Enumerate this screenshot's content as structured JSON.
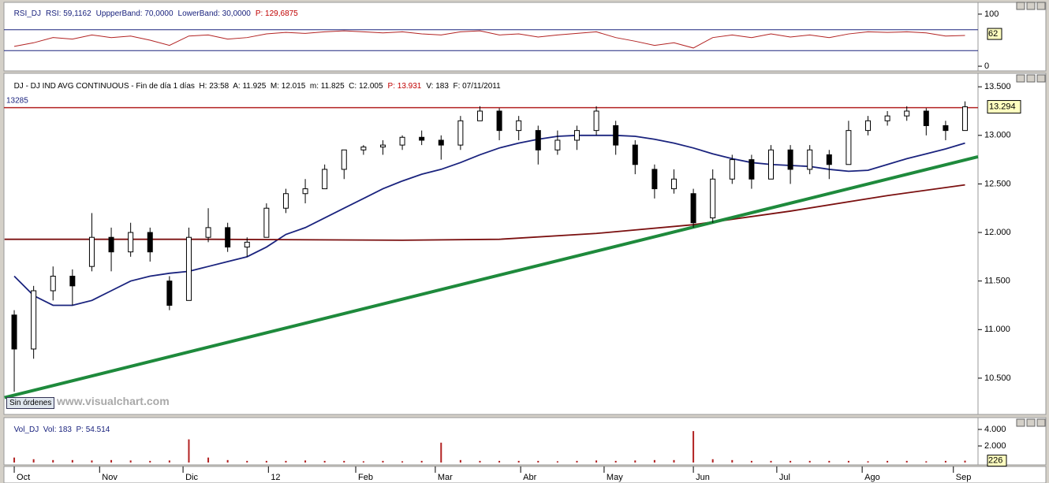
{
  "chart_data": [
    {
      "type": "line",
      "title_parts": [
        "RSI_DJ",
        "RSI: 59,1162",
        "UppperBand: 70,0000",
        "LowerBand: 30,0000",
        "P: 129,6875"
      ],
      "ylim": [
        -9,
        112
      ],
      "yticks": [
        100,
        0
      ],
      "bands": [
        70,
        30
      ],
      "band_color": "#1a237e",
      "last_value": 62,
      "xlim": [
        -0.53,
        49.67
      ],
      "series": [
        {
          "color": "#b22222",
          "x": [
            0,
            1,
            2,
            3,
            4,
            5,
            6,
            7,
            8,
            9,
            10,
            11,
            12,
            13,
            14,
            15,
            16,
            17,
            18,
            19,
            20,
            21,
            22,
            23,
            24,
            25,
            26,
            27,
            28,
            29,
            30,
            31,
            32,
            33,
            34,
            35,
            36,
            37,
            38,
            39,
            40,
            41,
            42,
            43,
            44,
            45,
            46,
            47,
            48,
            49
          ],
          "values": [
            38,
            45,
            55,
            52,
            60,
            55,
            58,
            50,
            40,
            58,
            60,
            52,
            55,
            62,
            65,
            63,
            66,
            68,
            66,
            64,
            66,
            62,
            60,
            66,
            68,
            60,
            62,
            56,
            60,
            63,
            66,
            55,
            48,
            40,
            45,
            35,
            55,
            60,
            55,
            62,
            56,
            60,
            55,
            62,
            66,
            65,
            66,
            64,
            58,
            59
          ]
        }
      ]
    },
    {
      "type": "candlestick",
      "title_parts": [
        "DJ - DJ IND AVG CONTINUOUS - Fin de día 1 días  H: 23:58  A: 11.925  M: 12.015  m: 11.825  C: 12.005",
        "P: 13.931",
        "V: 183  F: 07/11/2011"
      ],
      "ylim": [
        10110,
        13550
      ],
      "xlim": [
        -0.53,
        49.67
      ],
      "yticks": [
        {
          "value": 13500,
          "label": "13.500"
        },
        {
          "value": 13000,
          "label": "13.000"
        },
        {
          "value": 12500,
          "label": "12.500"
        },
        {
          "value": 12000,
          "label": "12.000"
        },
        {
          "value": 11500,
          "label": "11.500"
        },
        {
          "value": 11000,
          "label": "11.000"
        },
        {
          "value": 10500,
          "label": "10.500"
        }
      ],
      "hline": 13285,
      "hline_color": "#b22222",
      "last_price": {
        "value": 13294,
        "label": "13.294"
      },
      "candles": {
        "x": [
          0,
          1,
          2,
          3,
          4,
          5,
          6,
          7,
          8,
          9,
          10,
          11,
          12,
          13,
          14,
          15,
          16,
          17,
          18,
          19,
          20,
          21,
          22,
          23,
          24,
          25,
          26,
          27,
          28,
          29,
          30,
          31,
          32,
          33,
          34,
          35,
          36,
          37,
          38,
          39,
          40,
          41,
          42,
          43,
          44,
          45,
          46,
          47,
          48,
          49
        ],
        "open": [
          11150,
          10800,
          11400,
          11550,
          11650,
          11950,
          11800,
          12000,
          11500,
          11300,
          11950,
          12050,
          11850,
          11950,
          12250,
          12400,
          12450,
          12650,
          12850,
          12880,
          12900,
          12980,
          12950,
          12900,
          13150,
          13250,
          13050,
          13050,
          12850,
          12950,
          13050,
          13100,
          12900,
          12650,
          12450,
          12400,
          12150,
          12550,
          12750,
          12550,
          12850,
          12650,
          12800,
          12700,
          13050,
          13150,
          13200,
          13250,
          13100,
          13050
        ],
        "high": [
          11200,
          11450,
          11650,
          11620,
          12200,
          12050,
          12100,
          12050,
          11550,
          12050,
          12250,
          12100,
          11950,
          12300,
          12450,
          12550,
          12700,
          12800,
          12900,
          12950,
          13000,
          13050,
          13000,
          13200,
          13300,
          13280,
          13200,
          13100,
          13050,
          13100,
          13300,
          13150,
          12950,
          12700,
          12650,
          12450,
          12650,
          12800,
          12800,
          12900,
          12900,
          12900,
          12850,
          13150,
          13200,
          13250,
          13300,
          13280,
          13150,
          13350
        ],
        "low": [
          10360,
          10700,
          11300,
          11250,
          11600,
          11600,
          11750,
          11700,
          11200,
          11300,
          11900,
          11800,
          11750,
          11950,
          12200,
          12300,
          12450,
          12550,
          12800,
          12800,
          12850,
          12900,
          12750,
          12850,
          13150,
          12950,
          12950,
          12700,
          12800,
          12850,
          13000,
          12800,
          12600,
          12350,
          12400,
          12050,
          12100,
          12500,
          12450,
          12550,
          12500,
          12600,
          12550,
          12700,
          13000,
          13100,
          13150,
          13000,
          12950,
          13050
        ],
        "close": [
          10800,
          11400,
          11550,
          11450,
          11950,
          11800,
          12000,
          11800,
          11250,
          11950,
          12050,
          11850,
          11900,
          12250,
          12400,
          12450,
          12650,
          12850,
          12880,
          12900,
          12980,
          12950,
          12900,
          13150,
          13250,
          13050,
          13150,
          12850,
          12950,
          13050,
          13250,
          12900,
          12700,
          12450,
          12550,
          12100,
          12550,
          12750,
          12550,
          12850,
          12650,
          12850,
          12700,
          13050,
          13150,
          13200,
          13250,
          13100,
          13050,
          13294
        ]
      },
      "lines": [
        {
          "color": "#1a237e",
          "x": [
            0,
            1,
            2,
            3,
            4,
            5,
            6,
            7,
            8,
            9,
            10,
            11,
            12,
            13,
            14,
            15,
            16,
            17,
            18,
            19,
            20,
            21,
            22,
            23,
            24,
            25,
            26,
            27,
            28,
            29,
            30,
            31,
            32,
            33,
            34,
            35,
            36,
            37,
            38,
            39,
            40,
            41,
            42,
            43,
            44,
            45,
            46,
            47,
            48,
            49
          ],
          "values": [
            11550,
            11350,
            11250,
            11250,
            11300,
            11400,
            11500,
            11550,
            11580,
            11600,
            11650,
            11700,
            11750,
            11850,
            11980,
            12050,
            12150,
            12250,
            12350,
            12450,
            12530,
            12600,
            12650,
            12720,
            12800,
            12870,
            12920,
            12960,
            12990,
            13000,
            13000,
            13000,
            12990,
            12960,
            12920,
            12870,
            12810,
            12760,
            12720,
            12700,
            12690,
            12680,
            12650,
            12630,
            12640,
            12700,
            12760,
            12810,
            12860,
            12920
          ]
        },
        {
          "color": "#7b1010",
          "x": [
            -0.5,
            10,
            20,
            25,
            30,
            35,
            40,
            45,
            49
          ],
          "values": [
            11930,
            11930,
            11920,
            11930,
            11990,
            12080,
            12220,
            12380,
            12490
          ]
        },
        {
          "color": "#1e8a3c",
          "x": [
            -0.5,
            49.67
          ],
          "values": [
            10300,
            12780
          ]
        }
      ]
    },
    {
      "type": "bar",
      "title_parts": [
        "Vol_DJ  Vol: 183  P: 54.514"
      ],
      "ylim": [
        0,
        4667
      ],
      "xlim": [
        -0.53,
        49.67
      ],
      "yticks": [
        {
          "value": 4000,
          "label": "4.000"
        },
        {
          "value": 2000,
          "label": "2.000"
        }
      ],
      "last_value": 226,
      "color": "#b22222",
      "x": [
        0,
        1,
        2,
        3,
        4,
        5,
        6,
        7,
        8,
        9,
        10,
        11,
        12,
        13,
        14,
        15,
        16,
        17,
        18,
        19,
        20,
        21,
        22,
        23,
        24,
        25,
        26,
        27,
        28,
        29,
        30,
        31,
        32,
        33,
        34,
        35,
        36,
        37,
        38,
        39,
        40,
        41,
        42,
        43,
        44,
        45,
        46,
        47,
        48,
        49
      ],
      "values": [
        600,
        400,
        300,
        300,
        250,
        300,
        250,
        200,
        250,
        2800,
        600,
        300,
        200,
        200,
        200,
        250,
        200,
        200,
        150,
        200,
        150,
        200,
        2400,
        300,
        200,
        200,
        200,
        200,
        150,
        200,
        250,
        200,
        250,
        300,
        300,
        3800,
        400,
        300,
        200,
        200,
        200,
        200,
        200,
        200,
        150,
        200,
        200,
        150,
        200,
        226
      ],
      "xticks": [
        {
          "value": 0,
          "label": "Oct"
        },
        {
          "value": 4.4,
          "label": "Nov"
        },
        {
          "value": 8.7,
          "label": "Dic"
        },
        {
          "value": 13.1,
          "label": "12"
        },
        {
          "value": 17.6,
          "label": "Feb"
        },
        {
          "value": 21.7,
          "label": "Mar"
        },
        {
          "value": 26.1,
          "label": "Abr"
        },
        {
          "value": 30.4,
          "label": "May"
        },
        {
          "value": 35,
          "label": "Jun"
        },
        {
          "value": 39.3,
          "label": "Jul"
        },
        {
          "value": 43.7,
          "label": "Ago"
        },
        {
          "value": 48.4,
          "label": "Sep"
        }
      ]
    }
  ],
  "watermark": "www.visualchart.com",
  "status_button": "Sin órdenes"
}
